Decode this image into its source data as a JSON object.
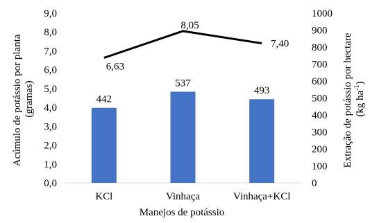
{
  "chart_data": {
    "type": "bar",
    "categories": [
      "KCl",
      "Vinhaça",
      "Vinhaça+KCl"
    ],
    "xlabel": "Manejos de potássio",
    "ylabel_left_line1": "Acúmulo de potássio por planta",
    "ylabel_left_line2": "(gramas)",
    "ylabel_right_line1": "Extração de potássio por hectare",
    "ylabel_right_line2_main": "(kg ha",
    "ylabel_right_line2_sup": "-1",
    "ylabel_right_line2_end": ")",
    "ylim_left": [
      0,
      9
    ],
    "ylim_right": [
      0,
      1000
    ],
    "left_ticks": [
      "0,0",
      "1,0",
      "2,0",
      "3,0",
      "4,0",
      "5,0",
      "6,0",
      "7,0",
      "8,0",
      "9,0"
    ],
    "right_ticks": [
      "0",
      "100",
      "200",
      "300",
      "400",
      "500",
      "600",
      "700",
      "800",
      "900",
      "1000"
    ],
    "bars": {
      "axis": "right",
      "values": [
        442,
        537,
        493
      ],
      "labels": [
        "442",
        "537",
        "493"
      ],
      "color": "#4472C4"
    },
    "line": {
      "axis": "left",
      "values": [
        6.63,
        8.05,
        7.4
      ],
      "labels": [
        "6,63",
        "8,05",
        "7,40"
      ],
      "color": "#000000"
    },
    "grid": false,
    "legend": "none"
  }
}
